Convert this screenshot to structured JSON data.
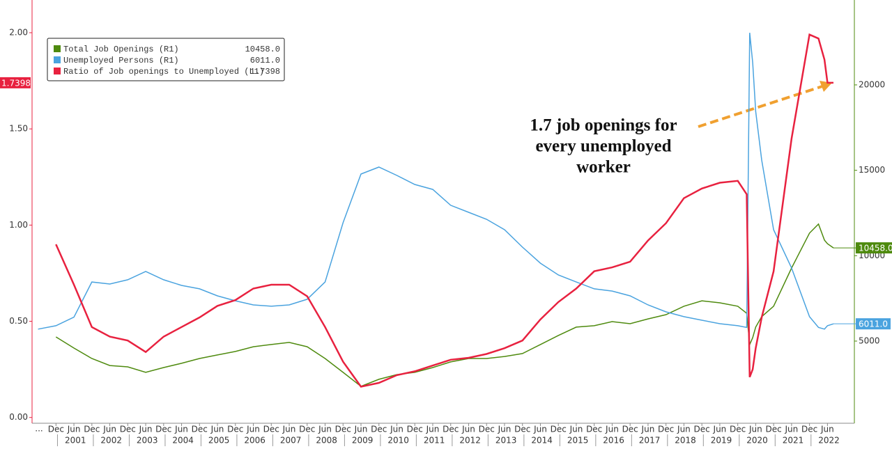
{
  "chart_data": {
    "type": "line",
    "annotation": [
      "1.7 job openings for",
      "every unemployed",
      "worker"
    ],
    "x_start_label": "...",
    "x": [
      "2000-06",
      "2000-12",
      "2001-06",
      "2001-12",
      "2002-06",
      "2002-12",
      "2003-06",
      "2003-12",
      "2004-06",
      "2004-12",
      "2005-06",
      "2005-12",
      "2006-06",
      "2006-12",
      "2007-06",
      "2007-12",
      "2008-06",
      "2008-12",
      "2009-06",
      "2009-12",
      "2010-06",
      "2010-12",
      "2011-06",
      "2011-12",
      "2012-06",
      "2012-12",
      "2013-06",
      "2013-12",
      "2014-06",
      "2014-12",
      "2015-06",
      "2015-12",
      "2016-06",
      "2016-12",
      "2017-06",
      "2017-12",
      "2018-06",
      "2018-12",
      "2019-06",
      "2019-12",
      "2020-03",
      "2020-04",
      "2020-05",
      "2020-06",
      "2020-08",
      "2020-12",
      "2021-06",
      "2021-12",
      "2022-03",
      "2022-05",
      "2022-06",
      "2022-08"
    ],
    "xlim": [
      "2000-04",
      "2023-03"
    ],
    "xticks": [
      {
        "value": "2000-12",
        "label": "Dec"
      },
      {
        "value": "2001-06",
        "label": "Jun"
      },
      {
        "value": "2001-12",
        "label": "Dec"
      },
      {
        "value": "2002-06",
        "label": "Jun"
      },
      {
        "value": "2002-12",
        "label": "Dec"
      },
      {
        "value": "2003-06",
        "label": "Jun"
      },
      {
        "value": "2003-12",
        "label": "Dec"
      },
      {
        "value": "2004-06",
        "label": "Jun"
      },
      {
        "value": "2004-12",
        "label": "Dec"
      },
      {
        "value": "2005-06",
        "label": "Jun"
      },
      {
        "value": "2005-12",
        "label": "Dec"
      },
      {
        "value": "2006-06",
        "label": "Jun"
      },
      {
        "value": "2006-12",
        "label": "Dec"
      },
      {
        "value": "2007-06",
        "label": "Jun"
      },
      {
        "value": "2007-12",
        "label": "Dec"
      },
      {
        "value": "2008-06",
        "label": "Jun"
      },
      {
        "value": "2008-12",
        "label": "Dec"
      },
      {
        "value": "2009-06",
        "label": "Jun"
      },
      {
        "value": "2009-12",
        "label": "Dec"
      },
      {
        "value": "2010-06",
        "label": "Jun"
      },
      {
        "value": "2010-12",
        "label": "Dec"
      },
      {
        "value": "2011-06",
        "label": "Jun"
      },
      {
        "value": "2011-12",
        "label": "Dec"
      },
      {
        "value": "2012-06",
        "label": "Jun"
      },
      {
        "value": "2012-12",
        "label": "Dec"
      },
      {
        "value": "2013-06",
        "label": "Jun"
      },
      {
        "value": "2013-12",
        "label": "Dec"
      },
      {
        "value": "2014-06",
        "label": "Jun"
      },
      {
        "value": "2014-12",
        "label": "Dec"
      },
      {
        "value": "2015-06",
        "label": "Jun"
      },
      {
        "value": "2015-12",
        "label": "Dec"
      },
      {
        "value": "2016-06",
        "label": "Jun"
      },
      {
        "value": "2016-12",
        "label": "Dec"
      },
      {
        "value": "2017-06",
        "label": "Jun"
      },
      {
        "value": "2017-12",
        "label": "Dec"
      },
      {
        "value": "2018-06",
        "label": "Jun"
      },
      {
        "value": "2018-12",
        "label": "Dec"
      },
      {
        "value": "2019-06",
        "label": "Jun"
      },
      {
        "value": "2019-12",
        "label": "Dec"
      },
      {
        "value": "2020-06",
        "label": "Jun"
      },
      {
        "value": "2020-12",
        "label": "Dec"
      },
      {
        "value": "2021-06",
        "label": "Jun"
      },
      {
        "value": "2021-12",
        "label": "Dec"
      },
      {
        "value": "2022-06",
        "label": "Jun"
      }
    ],
    "year_labels": [
      2001,
      2002,
      2003,
      2004,
      2005,
      2006,
      2007,
      2008,
      2009,
      2010,
      2011,
      2012,
      2013,
      2014,
      2015,
      2016,
      2017,
      2018,
      2019,
      2020,
      2021,
      2022
    ],
    "ylim": [
      -0.03,
      2.17
    ],
    "yticks": [
      {
        "value": 0,
        "label": "0.00"
      },
      {
        "value": 0.5,
        "label": "0.50"
      },
      {
        "value": 1,
        "label": "1.00"
      },
      {
        "value": 1.5,
        "label": "1.50"
      },
      {
        "value": 2,
        "label": "2.00"
      }
    ],
    "y_color": "#e8213f",
    "y2lim": [
      190,
      24970
    ],
    "y2ticks": [
      5000,
      10000,
      15000,
      20000
    ],
    "y2_color": "#4e8a0e",
    "series": [
      {
        "name": "Total Job Openings (R1)",
        "color": "#4e8a0e",
        "axis": "y2",
        "last_label": "10458.0",
        "values": [
          null,
          5245,
          4590,
          3980,
          3570,
          3490,
          3170,
          3450,
          3700,
          3980,
          4190,
          4390,
          4670,
          4800,
          4920,
          4670,
          3980,
          3170,
          2350,
          2760,
          3040,
          3170,
          3450,
          3780,
          3980,
          3980,
          4100,
          4270,
          4800,
          5330,
          5820,
          5900,
          6140,
          6020,
          6300,
          6550,
          7040,
          7360,
          7240,
          7040,
          6630,
          4800,
          5200,
          5820,
          6430,
          7040,
          9280,
          11320,
          11850,
          10910,
          10700,
          10458
        ]
      },
      {
        "name": "Unemployed Persons (R1)",
        "color": "#4aa3df",
        "axis": "y2",
        "last_label": "6011.0",
        "values": [
          5700,
          5900,
          6400,
          8460,
          8340,
          8590,
          9075,
          8590,
          8260,
          8060,
          7650,
          7360,
          7120,
          7040,
          7120,
          7450,
          8460,
          11930,
          14780,
          15190,
          14700,
          14170,
          13880,
          12950,
          12540,
          12130,
          11520,
          10500,
          9560,
          8870,
          8460,
          8060,
          7930,
          7650,
          7120,
          6710,
          6430,
          6220,
          6020,
          5900,
          5800,
          23050,
          21300,
          18450,
          15600,
          11520,
          9280,
          6430,
          5800,
          5700,
          5900,
          6011
        ]
      },
      {
        "name": "Ratio of Job openings to Unemployed (L1)",
        "color": "#e8213f",
        "axis": "y",
        "last_label": "1.7398",
        "values": [
          null,
          0.9,
          0.69,
          0.47,
          0.42,
          0.4,
          0.34,
          0.42,
          0.47,
          0.52,
          0.58,
          0.61,
          0.67,
          0.69,
          0.69,
          0.63,
          0.47,
          0.29,
          0.16,
          0.18,
          0.22,
          0.24,
          0.27,
          0.3,
          0.31,
          0.33,
          0.36,
          0.4,
          0.51,
          0.6,
          0.67,
          0.76,
          0.78,
          0.81,
          0.92,
          1.01,
          1.14,
          1.19,
          1.22,
          1.23,
          1.16,
          0.21,
          0.25,
          0.36,
          0.52,
          0.76,
          1.45,
          1.99,
          1.97,
          1.86,
          1.74,
          1.7398
        ]
      }
    ]
  }
}
